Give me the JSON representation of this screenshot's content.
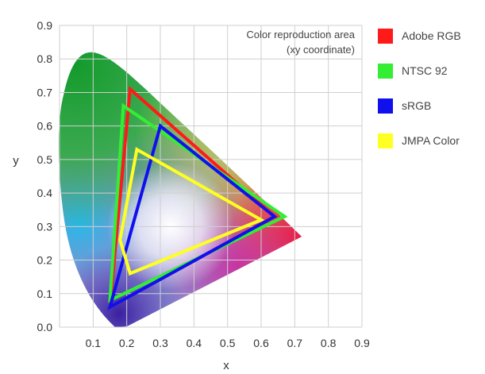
{
  "chart_data": {
    "type": "scatter",
    "title": "Color reproduction area",
    "subtitle": "(xy coordinate)",
    "xlabel": "x",
    "ylabel": "y",
    "xlim": [
      0,
      0.9
    ],
    "ylim": [
      0,
      0.9
    ],
    "x_ticks": [
      "0.1",
      "0.2",
      "0.3",
      "0.4",
      "0.5",
      "0.6",
      "0.7",
      "0.8",
      "0.9"
    ],
    "y_ticks": [
      "0.0",
      "0.1",
      "0.2",
      "0.3",
      "0.4",
      "0.5",
      "0.6",
      "0.7",
      "0.8",
      "0.9"
    ],
    "grid": true,
    "legend_position": "right",
    "series": [
      {
        "name": "Adobe RGB",
        "color": "#ff1a1a",
        "points": [
          [
            0.64,
            0.33
          ],
          [
            0.21,
            0.71
          ],
          [
            0.15,
            0.06
          ]
        ]
      },
      {
        "name": "NTSC 92",
        "color": "#33ee33",
        "points": [
          [
            0.67,
            0.33
          ],
          [
            0.19,
            0.66
          ],
          [
            0.15,
            0.08
          ]
        ]
      },
      {
        "name": "sRGB",
        "color": "#1010ee",
        "points": [
          [
            0.64,
            0.33
          ],
          [
            0.3,
            0.6
          ],
          [
            0.15,
            0.06
          ]
        ]
      },
      {
        "name": "JMPA Color",
        "color": "#ffff22",
        "points": [
          [
            0.6,
            0.32
          ],
          [
            0.23,
            0.53
          ],
          [
            0.18,
            0.26
          ],
          [
            0.21,
            0.16
          ]
        ]
      }
    ]
  }
}
